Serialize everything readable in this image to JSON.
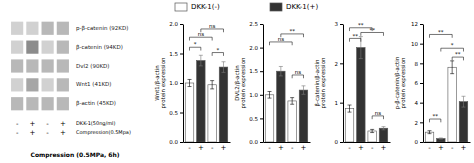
{
  "chart_data": [
    {
      "type": "blot",
      "xlabel": "Compression (0.5MPa, 6h)",
      "row_labels": [
        "p-β-catenin (92KD)",
        "β-catenin (94KD)",
        "Dvl2 (90KD)",
        "Wnt1 (41KD)",
        "β-actin (45KD)"
      ],
      "cells": [
        [
          0.82,
          0.82,
          0.72,
          0.72
        ],
        [
          0.82,
          0.55,
          0.82,
          0.72
        ],
        [
          0.72,
          0.72,
          0.72,
          0.72
        ],
        [
          0.82,
          0.65,
          0.82,
          0.72
        ],
        [
          0.72,
          0.72,
          0.72,
          0.72
        ]
      ],
      "column_signs": [
        [
          "-",
          "+",
          "-",
          "+"
        ],
        [
          "-",
          "+",
          "-",
          "+"
        ]
      ],
      "sign_row_labels": [
        "DKK-1(50ng/ml)",
        "Compression(0.5Mpa)"
      ]
    },
    {
      "type": "legend",
      "names": [
        "DKK-1(-)",
        "DKK-1(+)"
      ],
      "colors": [
        "white",
        "#333333"
      ]
    },
    {
      "type": "bar",
      "ylabel": "Wnt1/β-actin protein expression",
      "categories": [
        "-",
        "+",
        "-",
        "+"
      ],
      "values": [
        1.0,
        1.38,
        0.97,
        1.27
      ],
      "errors": [
        0.06,
        0.09,
        0.07,
        0.09
      ],
      "colors": [
        "white",
        "#333333",
        "white",
        "#333333"
      ],
      "ylim": [
        0,
        2.0
      ],
      "yticks": [
        {
          "value": 0.0,
          "label": "0.0"
        },
        0.5,
        {
          "value": 1.0,
          "label": "1.0"
        },
        1.5,
        {
          "value": 2.0,
          "label": "2.0"
        }
      ],
      "annotations": [
        {
          "from": 0,
          "to": 2,
          "y": 1.72,
          "label": "ns"
        },
        {
          "from": 1,
          "to": 3,
          "y": 1.86,
          "label": "ns"
        },
        {
          "from": 0,
          "to": 1,
          "y": 1.55,
          "label": "*"
        },
        {
          "from": 2,
          "to": 3,
          "y": 1.46,
          "label": "*"
        }
      ]
    },
    {
      "type": "bar",
      "ylabel": "DVL2/β-actin protein expression",
      "categories": [
        "-",
        "+",
        "-",
        "+"
      ],
      "values": [
        1.0,
        1.5,
        0.87,
        1.1
      ],
      "errors": [
        0.07,
        0.1,
        0.07,
        0.09
      ],
      "colors": [
        "white",
        "#333333",
        "white",
        "#333333"
      ],
      "ylim": [
        0.0,
        2.5
      ],
      "yticks": [
        {
          "value": 0.0,
          "label": "0.0"
        },
        0.5,
        {
          "value": 1.0,
          "label": "1.0"
        },
        1.5,
        {
          "value": 2.0,
          "label": "2.0"
        },
        2.5
      ],
      "annotations": [
        {
          "from": 0,
          "to": 2,
          "y": 2.05,
          "label": "ns"
        },
        {
          "from": 1,
          "to": 3,
          "y": 2.22,
          "label": "**"
        },
        {
          "from": 2,
          "to": 3,
          "y": 1.35,
          "label": "ns"
        }
      ]
    },
    {
      "type": "bar",
      "ylabel": "β-catenin/β-actin protein expression",
      "categories": [
        "-",
        "+",
        "-",
        "+"
      ],
      "values": [
        0.85,
        2.4,
        0.28,
        0.35
      ],
      "errors": [
        0.09,
        0.28,
        0.04,
        0.04
      ],
      "colors": [
        "white",
        "#333333",
        "white",
        "#333333"
      ],
      "ylim": [
        0,
        3.0
      ],
      "yticks": [
        0,
        1,
        2,
        3
      ],
      "annotations": [
        {
          "from": 0,
          "to": 2,
          "y": 2.82,
          "label": "**"
        },
        {
          "from": 0,
          "to": 1,
          "y": 2.55,
          "label": "**"
        },
        {
          "from": 1,
          "to": 3,
          "y": 2.7,
          "label": "**"
        },
        {
          "from": 2,
          "to": 3,
          "y": 0.58,
          "label": "ns"
        }
      ]
    },
    {
      "type": "bar",
      "ylabel": "p-β-catenin/β-actin protein expression",
      "categories": [
        "-",
        "+",
        "-",
        "+"
      ],
      "values": [
        1.0,
        0.35,
        7.6,
        4.1
      ],
      "errors": [
        0.15,
        0.06,
        0.65,
        0.55
      ],
      "colors": [
        "white",
        "#333333",
        "white",
        "#333333"
      ],
      "ylim": [
        0,
        12
      ],
      "yticks": [
        0,
        2,
        4,
        6,
        8,
        10,
        12
      ],
      "annotations": [
        {
          "from": 0,
          "to": 2,
          "y": 10.6,
          "label": "**"
        },
        {
          "from": 0,
          "to": 1,
          "y": 2.0,
          "label": "**"
        },
        {
          "from": 1,
          "to": 3,
          "y": 9.2,
          "label": "*"
        },
        {
          "from": 2,
          "to": 3,
          "y": 8.3,
          "label": "**"
        }
      ]
    }
  ]
}
